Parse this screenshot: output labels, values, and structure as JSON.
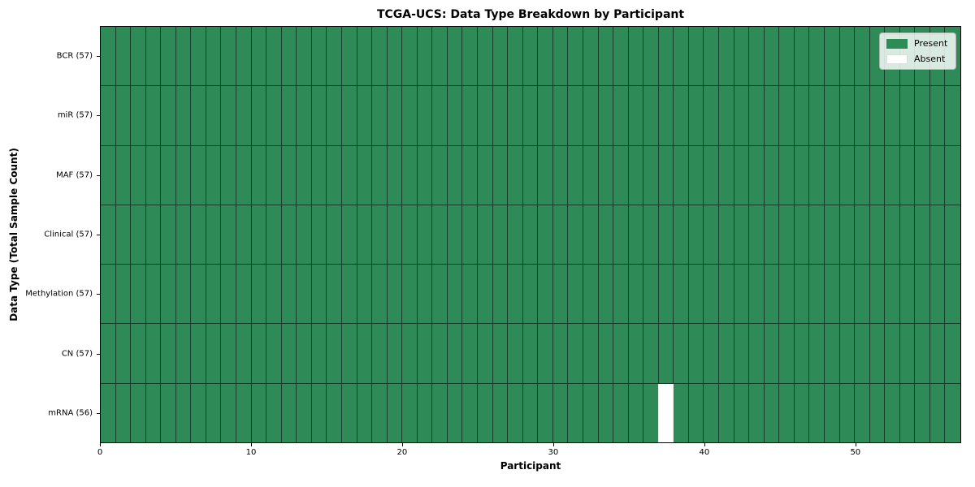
{
  "title": "TCGA-UCS: Data Type Breakdown by Participant",
  "chart_data": {
    "type": "heatmap",
    "title": "TCGA-UCS: Data Type Breakdown by Participant",
    "xlabel": "Participant",
    "ylabel": "Data Type (Total Sample Count)",
    "xlim": [
      0,
      57
    ],
    "n_participants": 57,
    "x_tick_values": [
      0,
      10,
      20,
      30,
      40,
      50
    ],
    "x_tick_labels": [
      "0",
      "10",
      "20",
      "30",
      "40",
      "50"
    ],
    "rows": [
      {
        "label": "BCR (57)",
        "data_type": "bcr",
        "total_samples": 57,
        "present_count": 57,
        "absent_participants": []
      },
      {
        "label": "miR (57)",
        "data_type": "mir",
        "total_samples": 57,
        "present_count": 57,
        "absent_participants": []
      },
      {
        "label": "MAF (57)",
        "data_type": "maf",
        "total_samples": 57,
        "present_count": 57,
        "absent_participants": []
      },
      {
        "label": "Clinical (57)",
        "data_type": "clinical",
        "total_samples": 57,
        "present_count": 57,
        "absent_participants": []
      },
      {
        "label": "Methylation (57)",
        "data_type": "methylation",
        "total_samples": 57,
        "present_count": 57,
        "absent_participants": []
      },
      {
        "label": "CN (57)",
        "data_type": "cn",
        "total_samples": 57,
        "present_count": 57,
        "absent_participants": []
      },
      {
        "label": "mRNA (56)",
        "data_type": "mrna",
        "total_samples": 56,
        "present_count": 56,
        "absent_participants": [
          37
        ]
      }
    ],
    "legend": {
      "position": "upper right",
      "entries": [
        {
          "label": "Present",
          "color": "#2e8b57",
          "state": "present"
        },
        {
          "label": "Absent",
          "color": "#ffffff",
          "state": "absent"
        }
      ]
    },
    "colors": {
      "present": "#2e8b57",
      "absent": "#ffffff",
      "cell_edge": "rgba(0,0,0,0.55)",
      "spine": "#000000"
    }
  }
}
